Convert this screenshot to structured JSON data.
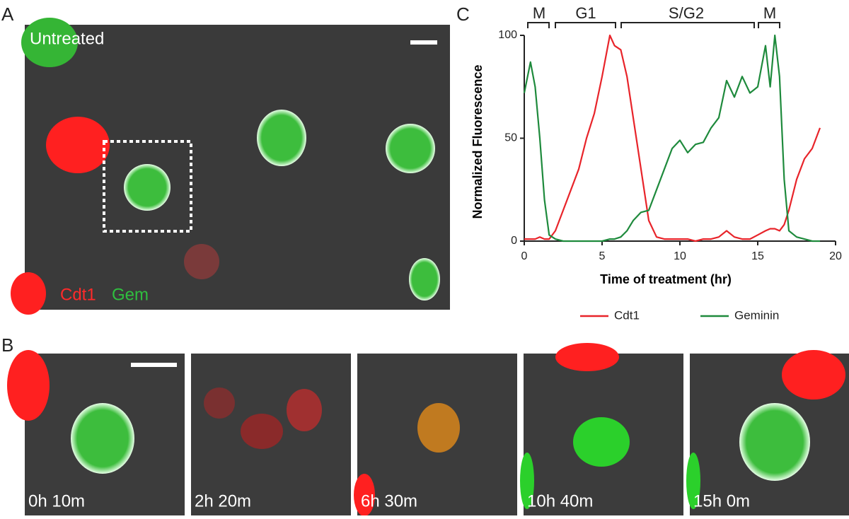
{
  "panel_labels": [
    "A",
    "B",
    "C"
  ],
  "panel_a": {
    "condition": "Untreated",
    "channels": [
      "Cdt1",
      "Gem"
    ]
  },
  "panel_b": {
    "timepoints": [
      "0h 10m",
      "2h 20m",
      "6h 30m",
      "10h 40m",
      "15h 0m"
    ]
  },
  "chart_data": {
    "type": "line",
    "phases": [
      "M",
      "G1",
      "S/G2",
      "M"
    ],
    "y_label": "Normalized Fluorescence",
    "x_label": "Time of treatment (hr)",
    "x": [
      0,
      0.4,
      0.7,
      1.0,
      1.3,
      1.6,
      2,
      2.5,
      3,
      3.5,
      4,
      4.5,
      5,
      5.5,
      5.8,
      6.2,
      6.6,
      7,
      7.5,
      8,
      8.5,
      9,
      9.5,
      10,
      10.5,
      11,
      11.5,
      12,
      12.5,
      13,
      13.5,
      14,
      14.5,
      15,
      15.5,
      15.8,
      16.1,
      16.4,
      16.7,
      17,
      17.5,
      18,
      18.5,
      19
    ],
    "series": [
      {
        "name": "Cdt1",
        "color": "#e8242a",
        "values": [
          1,
          1,
          1,
          2,
          1,
          1,
          5,
          15,
          25,
          35,
          50,
          62,
          80,
          100,
          95,
          93,
          80,
          60,
          35,
          10,
          2,
          1,
          1,
          1,
          1,
          0,
          1,
          1,
          2,
          5,
          2,
          1,
          1,
          3,
          5,
          6,
          6,
          5,
          8,
          15,
          30,
          40,
          45,
          55
        ]
      },
      {
        "name": "Geminin",
        "color": "#1e8a3c",
        "values": [
          72,
          87,
          75,
          50,
          20,
          3,
          1,
          0,
          0,
          0,
          0,
          0,
          0,
          1,
          1,
          2,
          5,
          10,
          14,
          15,
          25,
          35,
          45,
          49,
          43,
          47,
          48,
          55,
          60,
          78,
          70,
          80,
          72,
          75,
          95,
          75,
          100,
          80,
          30,
          5,
          2,
          1,
          0,
          0
        ]
      }
    ],
    "xlim": [
      0,
      20
    ],
    "xticks": [
      0,
      5,
      10,
      15,
      20
    ],
    "ylim": [
      0,
      100
    ],
    "yticks": [
      0,
      50,
      100
    ]
  }
}
